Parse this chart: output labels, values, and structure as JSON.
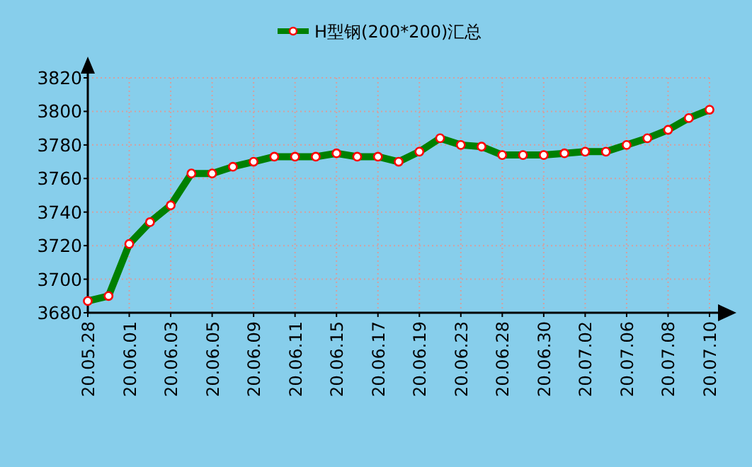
{
  "chart_data": {
    "type": "line",
    "categories": [
      "20.05.28",
      null,
      "20.06.01",
      null,
      "20.06.03",
      null,
      "20.06.05",
      null,
      "20.06.09",
      null,
      "20.06.11",
      null,
      "20.06.15",
      null,
      "20.06.17",
      null,
      "20.06.19",
      null,
      "20.06.23",
      null,
      "20.06.28",
      null,
      "20.06.30",
      null,
      "20.07.02",
      null,
      "20.07.06",
      null,
      "20.07.08",
      null,
      "20.07.10"
    ],
    "series": [
      {
        "name": "H型钢(200*200)汇总",
        "color": "#008000",
        "values": [
          3687,
          3690,
          3721,
          3734,
          3744,
          3763,
          3763,
          3767,
          3770,
          3773,
          3773,
          3773,
          3775,
          3773,
          3773,
          3770,
          3776,
          3784,
          3780,
          3779,
          3774,
          3774,
          3774,
          3775,
          3776,
          3776,
          3780,
          3784,
          3789,
          3796,
          3801
        ]
      }
    ],
    "ylim": [
      3680,
      3820
    ],
    "yticks": [
      3680,
      3700,
      3720,
      3740,
      3760,
      3780,
      3800,
      3820
    ],
    "grid": true,
    "legend": "top",
    "marker": "circle",
    "line_style": "solid"
  }
}
